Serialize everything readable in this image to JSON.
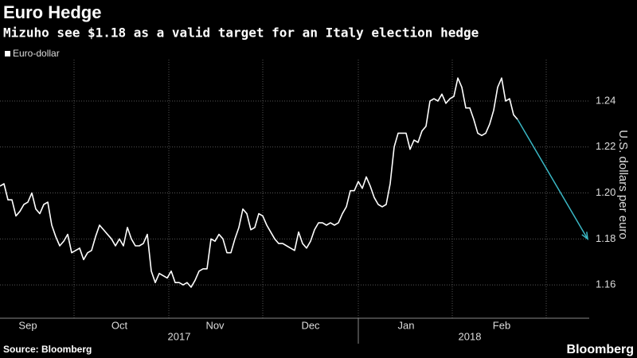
{
  "chart_data": {
    "type": "line",
    "title": "Euro Hedge",
    "subtitle": "Mizuho see $1.18 as a valid target for an Italy election hedge",
    "ylabel": "U.S. dollars per euro",
    "source": "Source: Bloomberg",
    "brand": "Bloomberg",
    "year_labels": [
      "2017",
      "2018"
    ],
    "categories": [
      null,
      null,
      null,
      null,
      null,
      null,
      null,
      "Sep",
      null,
      null,
      null,
      null,
      null,
      null,
      null,
      null,
      null,
      null,
      null,
      null,
      null,
      null,
      null,
      null,
      null,
      null,
      null,
      null,
      null,
      null,
      "Oct",
      null,
      null,
      null,
      null,
      null,
      null,
      null,
      null,
      null,
      null,
      null,
      null,
      null,
      null,
      null,
      null,
      null,
      null,
      null,
      null,
      null,
      null,
      null,
      "Nov",
      null,
      null,
      null,
      null,
      null,
      null,
      null,
      null,
      null,
      null,
      null,
      null,
      null,
      null,
      null,
      null,
      null,
      null,
      null,
      null,
      null,
      null,
      null,
      "Dec",
      null,
      null,
      null,
      null,
      null,
      null,
      null,
      null,
      null,
      null,
      null,
      null,
      null,
      null,
      null,
      null,
      null,
      null,
      null,
      null,
      null,
      null,
      null,
      "Jan",
      null,
      null,
      null,
      null,
      null,
      null,
      null,
      null,
      null,
      null,
      null,
      null,
      null,
      null,
      null,
      null,
      null,
      null,
      null,
      null,
      null,
      null,
      null,
      "Feb",
      null,
      null,
      null,
      null
    ],
    "series": [
      {
        "name": "Euro-dollar",
        "color": "#ffffff",
        "values": [
          1.203,
          1.204,
          1.197,
          1.197,
          1.19,
          1.192,
          1.195,
          1.196,
          1.2,
          1.193,
          1.191,
          1.195,
          1.196,
          1.186,
          1.181,
          1.177,
          1.179,
          1.182,
          1.174,
          1.175,
          1.176,
          1.171,
          1.174,
          1.175,
          1.181,
          1.186,
          1.184,
          1.182,
          1.18,
          1.177,
          1.18,
          1.177,
          1.185,
          1.18,
          1.177,
          1.177,
          1.178,
          1.182,
          1.166,
          1.161,
          1.165,
          1.164,
          1.163,
          1.166,
          1.161,
          1.161,
          1.16,
          1.161,
          1.159,
          1.162,
          1.166,
          1.167,
          1.167,
          1.18,
          1.179,
          1.182,
          1.18,
          1.174,
          1.174,
          1.18,
          1.185,
          1.193,
          1.191,
          1.184,
          1.185,
          1.191,
          1.19,
          1.186,
          1.183,
          1.18,
          1.178,
          1.178,
          1.177,
          1.176,
          1.175,
          1.183,
          1.178,
          1.176,
          1.179,
          1.184,
          1.187,
          1.187,
          1.186,
          1.187,
          1.186,
          1.187,
          1.191,
          1.194,
          1.201,
          1.201,
          1.205,
          1.202,
          1.207,
          1.203,
          1.198,
          1.195,
          1.194,
          1.195,
          1.204,
          1.22,
          1.226,
          1.226,
          1.226,
          1.219,
          1.223,
          1.222,
          1.227,
          1.229,
          1.24,
          1.241,
          1.24,
          1.243,
          1.239,
          1.241,
          1.242,
          1.25,
          1.246,
          1.237,
          1.237,
          1.232,
          1.226,
          1.225,
          1.226,
          1.23,
          1.236,
          1.246,
          1.25,
          1.24,
          1.241,
          1.234,
          1.232
        ]
      }
    ],
    "arrow_target": 1.18,
    "arrow_color": "#3ab7c4",
    "ylim": [
      1.1455,
      1.258
    ],
    "yticks": [
      1.16,
      1.18,
      {
        "value": 1.2,
        "label": "1.20"
      },
      1.22,
      1.24
    ],
    "grid": true
  }
}
